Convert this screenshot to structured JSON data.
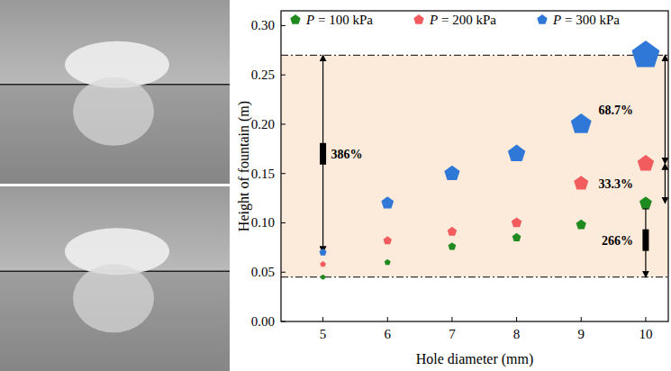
{
  "chart_data": {
    "type": "scatter",
    "x_label": "Hole diameter (mm)",
    "y_label": "Height of fountain (m)",
    "x": [
      5,
      6,
      7,
      8,
      9,
      10
    ],
    "series": [
      {
        "name": "P = 100 kPa",
        "color": "#1f8a1f",
        "values": [
          0.045,
          0.06,
          0.076,
          0.085,
          0.098,
          0.12
        ]
      },
      {
        "name": "P = 200 kPa",
        "color": "#f25c5e",
        "values": [
          0.058,
          0.082,
          0.091,
          0.1,
          0.14,
          0.16
        ]
      },
      {
        "name": "P = 300 kPa",
        "color": "#2f78d8",
        "values": [
          0.07,
          0.12,
          0.15,
          0.17,
          0.2,
          0.27
        ]
      }
    ],
    "xlim": [
      4.35,
      10.35
    ],
    "xticks": [
      5,
      6,
      7,
      8,
      9,
      10
    ],
    "ylim": [
      0,
      0.315
    ],
    "yticks": [
      {
        "value": 0,
        "label": "0.00"
      },
      {
        "value": 0.05,
        "label": "0.05"
      },
      {
        "value": 0.1,
        "label": "0.10"
      },
      {
        "value": 0.15,
        "label": "0.15"
      },
      {
        "value": 0.2,
        "label": "0.20"
      },
      {
        "value": 0.25,
        "label": "0.25"
      },
      {
        "value": 0.3,
        "label": "0.30"
      }
    ],
    "marker": "pentagon",
    "legend": "top",
    "grid": false,
    "reference_lines": [
      0.27,
      0.045
    ],
    "annotations": [
      {
        "text": "386%",
        "x": 5,
        "from": 0.07,
        "to": 0.27
      },
      {
        "text": "68.7%",
        "x": 10.3,
        "from": 0.16,
        "to": 0.27
      },
      {
        "text": "33.3%",
        "x": 10.3,
        "from": 0.12,
        "to": 0.16
      },
      {
        "text": "266%",
        "x": 10,
        "from": 0.045,
        "to": 0.12
      }
    ]
  }
}
